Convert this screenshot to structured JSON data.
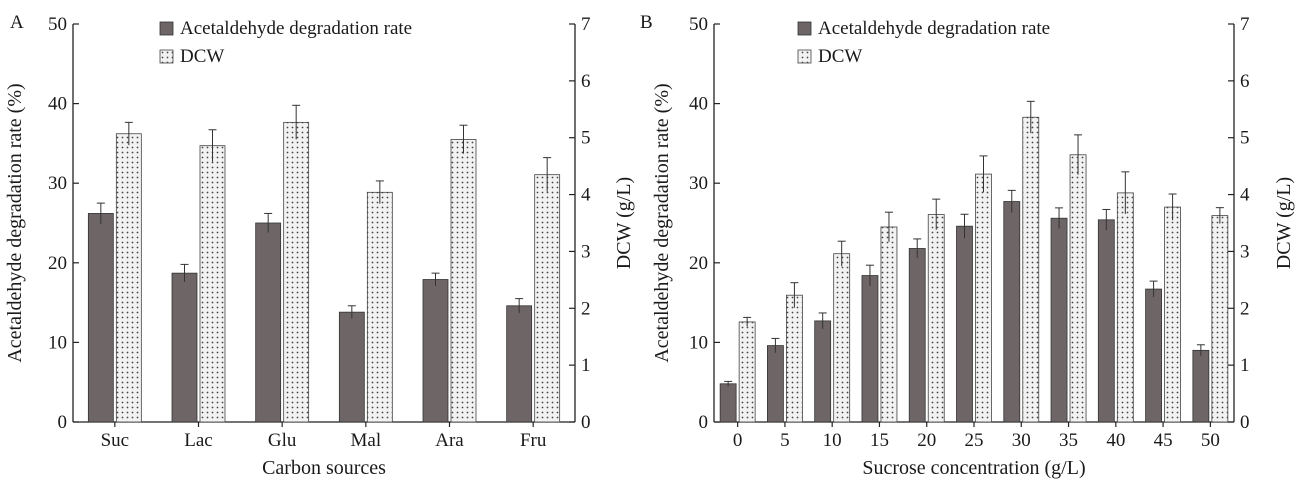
{
  "colors": {
    "bar_primary": "#6e6666",
    "bar_secondary_bg": "#f2f2f2",
    "dot": "#444444",
    "axis": "#222222"
  },
  "chart_data": [
    {
      "panel_label": "A",
      "type": "bar",
      "categories": [
        "Suc",
        "Lac",
        "Glu",
        "Mal",
        "Ara",
        "Fru"
      ],
      "xlabel": "Carbon sources",
      "ylabel": "Acetaldehyde degradation rate (%)",
      "ylabel_right": "DCW (g/L)",
      "ylim": [
        0,
        50
      ],
      "ylim_right": [
        0,
        7
      ],
      "yticks": [
        0,
        10,
        20,
        30,
        40,
        50
      ],
      "yticks_right": [
        0,
        1,
        2,
        3,
        4,
        5,
        6,
        7
      ],
      "legend_position": "top-center",
      "grid": false,
      "series": [
        {
          "name": "Acetaldehyde degradation rate",
          "axis": "left",
          "pattern": "solid",
          "values": [
            26.2,
            18.7,
            25.0,
            13.8,
            17.9,
            14.6
          ],
          "errors": [
            1.3,
            1.1,
            1.2,
            0.8,
            0.8,
            0.9
          ]
        },
        {
          "name": "DCW",
          "axis": "right",
          "pattern": "dotted",
          "values": [
            5.07,
            4.86,
            5.27,
            4.04,
            4.97,
            4.35
          ],
          "errors": [
            0.2,
            0.28,
            0.3,
            0.2,
            0.25,
            0.3
          ]
        }
      ]
    },
    {
      "panel_label": "B",
      "type": "bar",
      "categories": [
        "0",
        "5",
        "10",
        "15",
        "20",
        "25",
        "30",
        "35",
        "40",
        "45",
        "50"
      ],
      "xlabel": "Sucrose concentration (g/L)",
      "ylabel": "Acetaldehyde degradation rate (%)",
      "ylabel_right": "DCW (g/L)",
      "ylim": [
        0,
        50
      ],
      "ylim_right": [
        0,
        7
      ],
      "yticks": [
        0,
        10,
        20,
        30,
        40,
        50
      ],
      "yticks_right": [
        0,
        1,
        2,
        3,
        4,
        5,
        6,
        7
      ],
      "legend_position": "top-center",
      "grid": false,
      "series": [
        {
          "name": "Acetaldehyde degradation rate",
          "axis": "left",
          "pattern": "solid",
          "values": [
            4.8,
            9.6,
            12.7,
            18.4,
            21.8,
            24.6,
            27.7,
            25.6,
            25.4,
            16.7,
            9.0
          ],
          "errors": [
            0.3,
            0.9,
            1.0,
            1.3,
            1.2,
            1.5,
            1.4,
            1.3,
            1.3,
            1.0,
            0.7
          ]
        },
        {
          "name": "DCW",
          "axis": "right",
          "pattern": "dotted",
          "values": [
            1.76,
            2.23,
            2.96,
            3.43,
            3.65,
            4.36,
            5.36,
            4.7,
            4.03,
            3.78,
            3.63
          ],
          "errors": [
            0.08,
            0.22,
            0.22,
            0.26,
            0.27,
            0.32,
            0.28,
            0.35,
            0.37,
            0.23,
            0.14
          ]
        }
      ]
    }
  ]
}
